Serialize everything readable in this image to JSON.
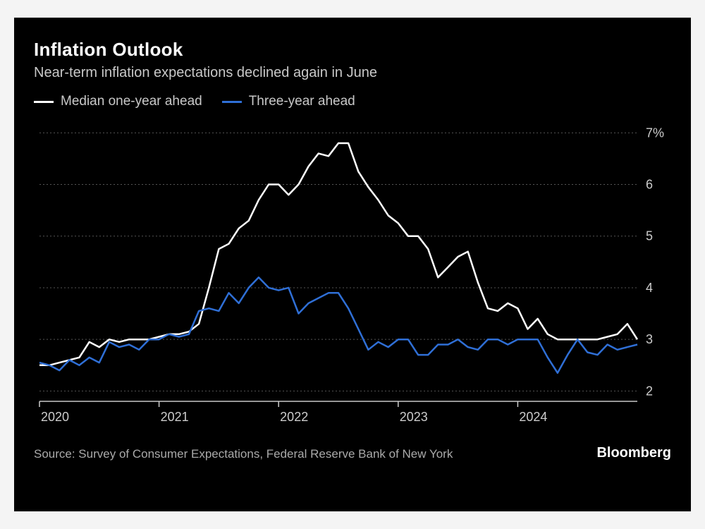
{
  "chart": {
    "type": "line",
    "title": "Inflation Outlook",
    "subtitle": "Near-term inflation expectations declined again in June",
    "background_color": "#000000",
    "grid_color": "#555555",
    "axis_color": "#c8c8c8",
    "text_color": "#cccccc",
    "title_color": "#ffffff",
    "subtitle_color": "#c8c8c8",
    "title_fontsize": 26,
    "subtitle_fontsize": 20,
    "label_fontsize": 18,
    "legend_fontsize": 19,
    "series": [
      {
        "name": "Median one-year ahead",
        "color": "#ffffff",
        "values": [
          2.5,
          2.5,
          2.55,
          2.6,
          2.65,
          2.95,
          2.85,
          3.0,
          2.95,
          3.0,
          3.0,
          3.0,
          3.05,
          3.1,
          3.1,
          3.15,
          3.3,
          4.0,
          4.75,
          4.85,
          5.15,
          5.3,
          5.7,
          6.0,
          6.0,
          5.8,
          6.0,
          6.35,
          6.6,
          6.55,
          6.8,
          6.8,
          6.25,
          5.95,
          5.7,
          5.4,
          5.25,
          5.0,
          5.0,
          4.75,
          4.2,
          4.4,
          4.6,
          4.7,
          4.1,
          3.6,
          3.55,
          3.7,
          3.6,
          3.2,
          3.4,
          3.1,
          3.0,
          3.0,
          3.0,
          3.0,
          3.0,
          3.05,
          3.1,
          3.3,
          3.0
        ]
      },
      {
        "name": "Three-year ahead",
        "color": "#2f6fd6",
        "values": [
          2.55,
          2.5,
          2.4,
          2.6,
          2.5,
          2.65,
          2.55,
          2.95,
          2.85,
          2.9,
          2.8,
          3.0,
          3.0,
          3.1,
          3.05,
          3.1,
          3.55,
          3.6,
          3.55,
          3.9,
          3.7,
          4.0,
          4.2,
          4.0,
          3.95,
          4.0,
          3.5,
          3.7,
          3.8,
          3.9,
          3.9,
          3.6,
          3.2,
          2.8,
          2.95,
          2.85,
          3.0,
          3.0,
          2.7,
          2.7,
          2.9,
          2.9,
          3.0,
          2.85,
          2.8,
          3.0,
          3.0,
          2.9,
          3.0,
          3.0,
          3.0,
          2.65,
          2.35,
          2.7,
          3.0,
          2.75,
          2.7,
          2.9,
          2.8,
          2.85,
          2.9
        ]
      }
    ],
    "x_labels": [
      "2020",
      "2021",
      "2022",
      "2023",
      "2024"
    ],
    "x_tick_positions": [
      0,
      12,
      24,
      36,
      48
    ],
    "x_max_index": 60,
    "y_ticks": [
      2,
      3,
      4,
      5,
      6,
      7
    ],
    "y_tick_labels": [
      "2",
      "3",
      "4",
      "5",
      "6",
      "7%"
    ],
    "ylim": [
      1.8,
      7.1
    ],
    "line_width": 2.5
  },
  "footer": {
    "source": "Source: Survey of Consumer Expectations, Federal Reserve Bank of New York",
    "brand": "Bloomberg"
  }
}
